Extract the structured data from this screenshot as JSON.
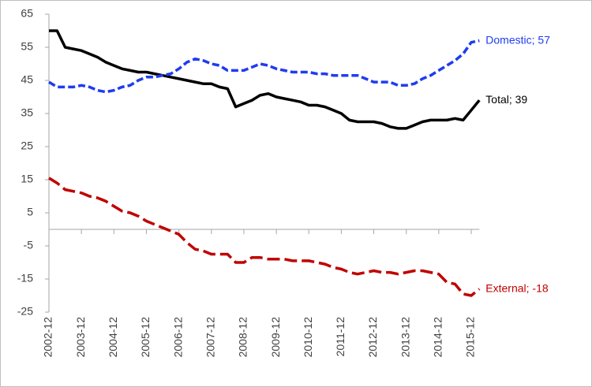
{
  "chart_data": {
    "type": "line",
    "categories": [
      "2002-12",
      null,
      null,
      null,
      "2003-12",
      null,
      null,
      null,
      "2004-12",
      null,
      null,
      null,
      "2005-12",
      null,
      null,
      null,
      "2006-12",
      null,
      null,
      null,
      "2007-12",
      null,
      null,
      null,
      "2008-12",
      null,
      null,
      null,
      "2009-12",
      null,
      null,
      null,
      "2010-12",
      null,
      null,
      null,
      "2011-12",
      null,
      null,
      null,
      "2012-12",
      null,
      null,
      null,
      "2013-12",
      null,
      null,
      null,
      "2014-12",
      null,
      null,
      null,
      "2015-12",
      null
    ],
    "series": [
      {
        "color": "#000000",
        "line_style": "solid",
        "end_label": "Total; 39",
        "values": [
          60,
          60,
          55,
          54.5,
          54,
          53,
          52,
          50.5,
          49.5,
          48.5,
          48,
          47.5,
          47.5,
          47,
          46.5,
          46,
          45.5,
          45,
          44.5,
          44,
          44,
          43,
          42.5,
          37,
          38,
          39,
          40.5,
          41,
          40,
          39.5,
          39,
          38.5,
          37.5,
          37.5,
          37,
          36,
          35,
          33,
          32.5,
          32.5,
          32.5,
          32,
          31,
          30.5,
          30.5,
          31.5,
          32.5,
          33,
          33,
          33,
          33.5,
          33,
          36,
          39
        ]
      },
      {
        "color": "#1f3cf0",
        "line_style": "dashed",
        "end_label": "Domestic; 57",
        "values": [
          44.5,
          43,
          43,
          43,
          43.5,
          43,
          42,
          41.5,
          42,
          43,
          43.5,
          45,
          46,
          46,
          46.5,
          47,
          48.5,
          50.5,
          51.5,
          51,
          50,
          49.5,
          48,
          48,
          48,
          49,
          50,
          49.5,
          48.5,
          48,
          47.5,
          47.5,
          47.5,
          47,
          47,
          46.5,
          46.5,
          46.5,
          46.5,
          45.5,
          44.5,
          44.5,
          44.5,
          43.5,
          43.5,
          44,
          45.5,
          46.5,
          48,
          49.5,
          51,
          53,
          56.5,
          57
        ]
      },
      {
        "color": "#c00000",
        "line_style": "long-dashed",
        "end_label": "External; -18",
        "values": [
          15.5,
          14,
          12,
          11.5,
          11,
          10,
          9.5,
          8.5,
          7,
          5.5,
          5,
          4,
          2.5,
          1.5,
          0.5,
          -0.5,
          -1.5,
          -4,
          -6,
          -6.5,
          -7.5,
          -7.5,
          -7.5,
          -10,
          -10,
          -8.5,
          -8.5,
          -9,
          -9,
          -9,
          -9.5,
          -9.5,
          -9.5,
          -10,
          -10.5,
          -11.5,
          -12,
          -13,
          -13.5,
          -13,
          -12.5,
          -13,
          -13,
          -13.5,
          -13,
          -12.5,
          -12.5,
          -13,
          -13.5,
          -16,
          -16.5,
          -19.5,
          -20,
          -18
        ]
      }
    ],
    "ylim": [
      -25,
      65
    ],
    "yticks": [
      -25,
      -15,
      -5,
      5,
      15,
      25,
      35,
      45,
      55,
      65
    ],
    "grid": false
  }
}
